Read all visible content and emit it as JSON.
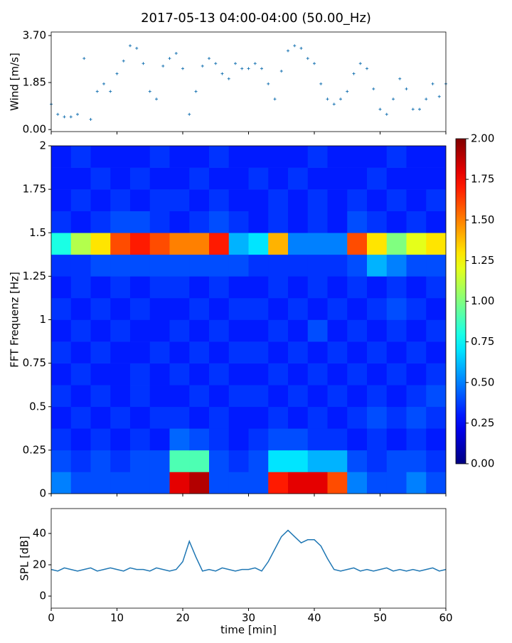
{
  "chart_data": [
    {
      "type": "scatter",
      "title": "2017-05-13 04:00-04:00 (50.00_Hz)",
      "y_label": "Wind [m/s]",
      "color": "#1f77b4",
      "x": [
        0,
        1,
        2,
        3,
        4,
        5,
        6,
        7,
        8,
        9,
        10,
        11,
        12,
        13,
        14,
        15,
        16,
        17,
        18,
        19,
        20,
        21,
        22,
        23,
        24,
        25,
        26,
        27,
        28,
        29,
        30,
        31,
        32,
        33,
        34,
        35,
        36,
        37,
        38,
        39,
        40,
        41,
        42,
        43,
        44,
        45,
        46,
        47,
        48,
        49,
        50,
        51,
        52,
        53,
        54,
        55,
        56,
        57,
        58,
        59,
        60
      ],
      "values": [
        1.0,
        0.6,
        0.5,
        0.5,
        0.6,
        2.8,
        0.4,
        1.5,
        1.8,
        1.5,
        2.2,
        2.7,
        3.3,
        3.2,
        2.6,
        1.5,
        1.2,
        2.5,
        2.8,
        3.0,
        2.4,
        0.6,
        1.5,
        2.5,
        2.8,
        2.6,
        2.2,
        2.0,
        2.6,
        2.4,
        2.4,
        2.6,
        2.4,
        1.8,
        1.2,
        2.3,
        3.1,
        3.3,
        3.2,
        2.8,
        2.6,
        1.8,
        1.2,
        1.0,
        1.2,
        1.5,
        2.2,
        2.6,
        2.4,
        1.6,
        0.8,
        0.6,
        1.2,
        2.0,
        1.6,
        0.8,
        0.8,
        1.2,
        1.8,
        1.3,
        1.8
      ],
      "xlim": [
        0,
        60
      ],
      "xticks": [
        0,
        10,
        20,
        30,
        40,
        50,
        60
      ],
      "show_xtick_labels": false,
      "ylim": [
        -0.08,
        3.84
      ],
      "yticks": [
        {
          "value": 0,
          "label": "0.00"
        },
        {
          "value": 1.85,
          "label": "1.85"
        },
        {
          "value": 3.7,
          "label": "3.70"
        }
      ]
    },
    {
      "type": "heatmap",
      "y_label": "FFT Frequenz [Hz]",
      "colormap": "jet",
      "x": [
        0,
        3,
        6,
        9,
        12,
        15,
        18,
        21,
        24,
        27,
        30,
        33,
        36,
        39,
        42,
        45,
        48,
        51,
        54,
        57,
        60
      ],
      "y": [
        0,
        0.125,
        0.25,
        0.375,
        0.5,
        0.625,
        0.75,
        0.875,
        1,
        1.125,
        1.25,
        1.375,
        1.5,
        1.625,
        1.75,
        1.875,
        2
      ],
      "values": [
        [
          0.5,
          0.4,
          0.4,
          0.4,
          0.4,
          0.4,
          1.8,
          1.9,
          0.4,
          0.4,
          0.4,
          1.7,
          1.8,
          1.8,
          1.6,
          0.5,
          0.4,
          0.4,
          0.5,
          0.4
        ],
        [
          0.4,
          0.35,
          0.4,
          0.35,
          0.4,
          0.4,
          0.9,
          0.9,
          0.4,
          0.35,
          0.4,
          0.7,
          0.7,
          0.6,
          0.6,
          0.4,
          0.35,
          0.4,
          0.4,
          0.35
        ],
        [
          0.35,
          0.3,
          0.35,
          0.3,
          0.35,
          0.3,
          0.45,
          0.4,
          0.35,
          0.3,
          0.35,
          0.4,
          0.4,
          0.35,
          0.35,
          0.3,
          0.35,
          0.3,
          0.35,
          0.3
        ],
        [
          0.3,
          0.35,
          0.3,
          0.35,
          0.3,
          0.35,
          0.35,
          0.3,
          0.35,
          0.3,
          0.3,
          0.35,
          0.3,
          0.35,
          0.3,
          0.35,
          0.4,
          0.35,
          0.4,
          0.35
        ],
        [
          0.35,
          0.3,
          0.35,
          0.3,
          0.35,
          0.3,
          0.3,
          0.35,
          0.3,
          0.35,
          0.35,
          0.3,
          0.35,
          0.3,
          0.35,
          0.3,
          0.35,
          0.3,
          0.35,
          0.4
        ],
        [
          0.3,
          0.35,
          0.3,
          0.3,
          0.35,
          0.3,
          0.35,
          0.3,
          0.35,
          0.3,
          0.3,
          0.35,
          0.3,
          0.35,
          0.3,
          0.35,
          0.3,
          0.35,
          0.3,
          0.35
        ],
        [
          0.35,
          0.3,
          0.35,
          0.3,
          0.3,
          0.35,
          0.3,
          0.35,
          0.3,
          0.35,
          0.35,
          0.3,
          0.35,
          0.3,
          0.35,
          0.3,
          0.35,
          0.3,
          0.35,
          0.3
        ],
        [
          0.3,
          0.35,
          0.3,
          0.35,
          0.3,
          0.3,
          0.35,
          0.3,
          0.35,
          0.3,
          0.3,
          0.35,
          0.3,
          0.4,
          0.3,
          0.35,
          0.3,
          0.35,
          0.3,
          0.35
        ],
        [
          0.35,
          0.3,
          0.35,
          0.3,
          0.35,
          0.3,
          0.3,
          0.35,
          0.3,
          0.35,
          0.35,
          0.3,
          0.35,
          0.3,
          0.35,
          0.3,
          0.35,
          0.4,
          0.35,
          0.3
        ],
        [
          0.3,
          0.35,
          0.3,
          0.35,
          0.3,
          0.35,
          0.35,
          0.3,
          0.35,
          0.3,
          0.3,
          0.35,
          0.3,
          0.35,
          0.3,
          0.35,
          0.3,
          0.35,
          0.3,
          0.35
        ],
        [
          0.35,
          0.35,
          0.4,
          0.4,
          0.4,
          0.4,
          0.4,
          0.4,
          0.4,
          0.4,
          0.35,
          0.35,
          0.35,
          0.35,
          0.35,
          0.4,
          0.6,
          0.5,
          0.4,
          0.4
        ],
        [
          0.8,
          1.1,
          1.3,
          1.6,
          1.7,
          1.6,
          1.5,
          1.5,
          1.7,
          0.6,
          0.7,
          1.4,
          0.5,
          0.5,
          0.5,
          1.6,
          1.3,
          1.0,
          1.2,
          1.3
        ],
        [
          0.35,
          0.3,
          0.35,
          0.4,
          0.4,
          0.35,
          0.3,
          0.35,
          0.4,
          0.35,
          0.3,
          0.35,
          0.3,
          0.35,
          0.3,
          0.4,
          0.35,
          0.3,
          0.35,
          0.3
        ],
        [
          0.3,
          0.35,
          0.3,
          0.35,
          0.3,
          0.35,
          0.35,
          0.3,
          0.35,
          0.3,
          0.3,
          0.35,
          0.3,
          0.35,
          0.3,
          0.35,
          0.3,
          0.35,
          0.3,
          0.35
        ],
        [
          0.3,
          0.3,
          0.35,
          0.3,
          0.35,
          0.3,
          0.3,
          0.35,
          0.3,
          0.3,
          0.35,
          0.3,
          0.35,
          0.3,
          0.3,
          0.3,
          0.35,
          0.3,
          0.3,
          0.3
        ],
        [
          0.3,
          0.35,
          0.3,
          0.3,
          0.3,
          0.35,
          0.3,
          0.3,
          0.35,
          0.3,
          0.3,
          0.3,
          0.3,
          0.35,
          0.3,
          0.3,
          0.3,
          0.35,
          0.3,
          0.3
        ]
      ],
      "xlim": [
        0,
        60
      ],
      "xticks": [
        0,
        10,
        20,
        30,
        40,
        50,
        60
      ],
      "show_xtick_labels": false,
      "ylim": [
        0,
        2
      ],
      "yticks": [
        0,
        0.25,
        0.5,
        0.75,
        1,
        1.25,
        1.5,
        1.75,
        2
      ],
      "colorbar": {
        "lim": [
          0,
          2
        ],
        "ticks": [
          {
            "value": 0,
            "label": "0.00"
          },
          {
            "value": 0.25,
            "label": "0.25"
          },
          {
            "value": 0.5,
            "label": "0.50"
          },
          {
            "value": 0.75,
            "label": "0.75"
          },
          {
            "value": 1,
            "label": "1.00"
          },
          {
            "value": 1.25,
            "label": "1.25"
          },
          {
            "value": 1.5,
            "label": "1.50"
          },
          {
            "value": 1.75,
            "label": "1.75"
          },
          {
            "value": 2,
            "label": "2.00"
          }
        ]
      }
    },
    {
      "type": "line",
      "y_label": "SPL [dB]",
      "x_label": "time [min]",
      "color": "#1f77b4",
      "x": [
        0,
        1,
        2,
        3,
        4,
        5,
        6,
        7,
        8,
        9,
        10,
        11,
        12,
        13,
        14,
        15,
        16,
        17,
        18,
        19,
        20,
        21,
        22,
        23,
        24,
        25,
        26,
        27,
        28,
        29,
        30,
        31,
        32,
        33,
        34,
        35,
        36,
        37,
        38,
        39,
        40,
        41,
        42,
        43,
        44,
        45,
        46,
        47,
        48,
        49,
        50,
        51,
        52,
        53,
        54,
        55,
        56,
        57,
        58,
        59,
        60
      ],
      "values": [
        17,
        16,
        18,
        17,
        16,
        17,
        18,
        16,
        17,
        18,
        17,
        16,
        18,
        17,
        17,
        16,
        18,
        17,
        16,
        17,
        22,
        35,
        25,
        16,
        17,
        16,
        18,
        17,
        16,
        17,
        17,
        18,
        16,
        22,
        30,
        38,
        42,
        38,
        34,
        36,
        36,
        32,
        24,
        17,
        16,
        17,
        18,
        16,
        17,
        16,
        17,
        18,
        16,
        17,
        16,
        17,
        16,
        17,
        18,
        16,
        17
      ],
      "xlim": [
        0,
        60
      ],
      "xticks": [
        0,
        10,
        20,
        30,
        40,
        50,
        60
      ],
      "show_xtick_labels": true,
      "ylim": [
        -7.7,
        55.9
      ],
      "yticks": [
        0,
        20,
        40
      ]
    }
  ]
}
